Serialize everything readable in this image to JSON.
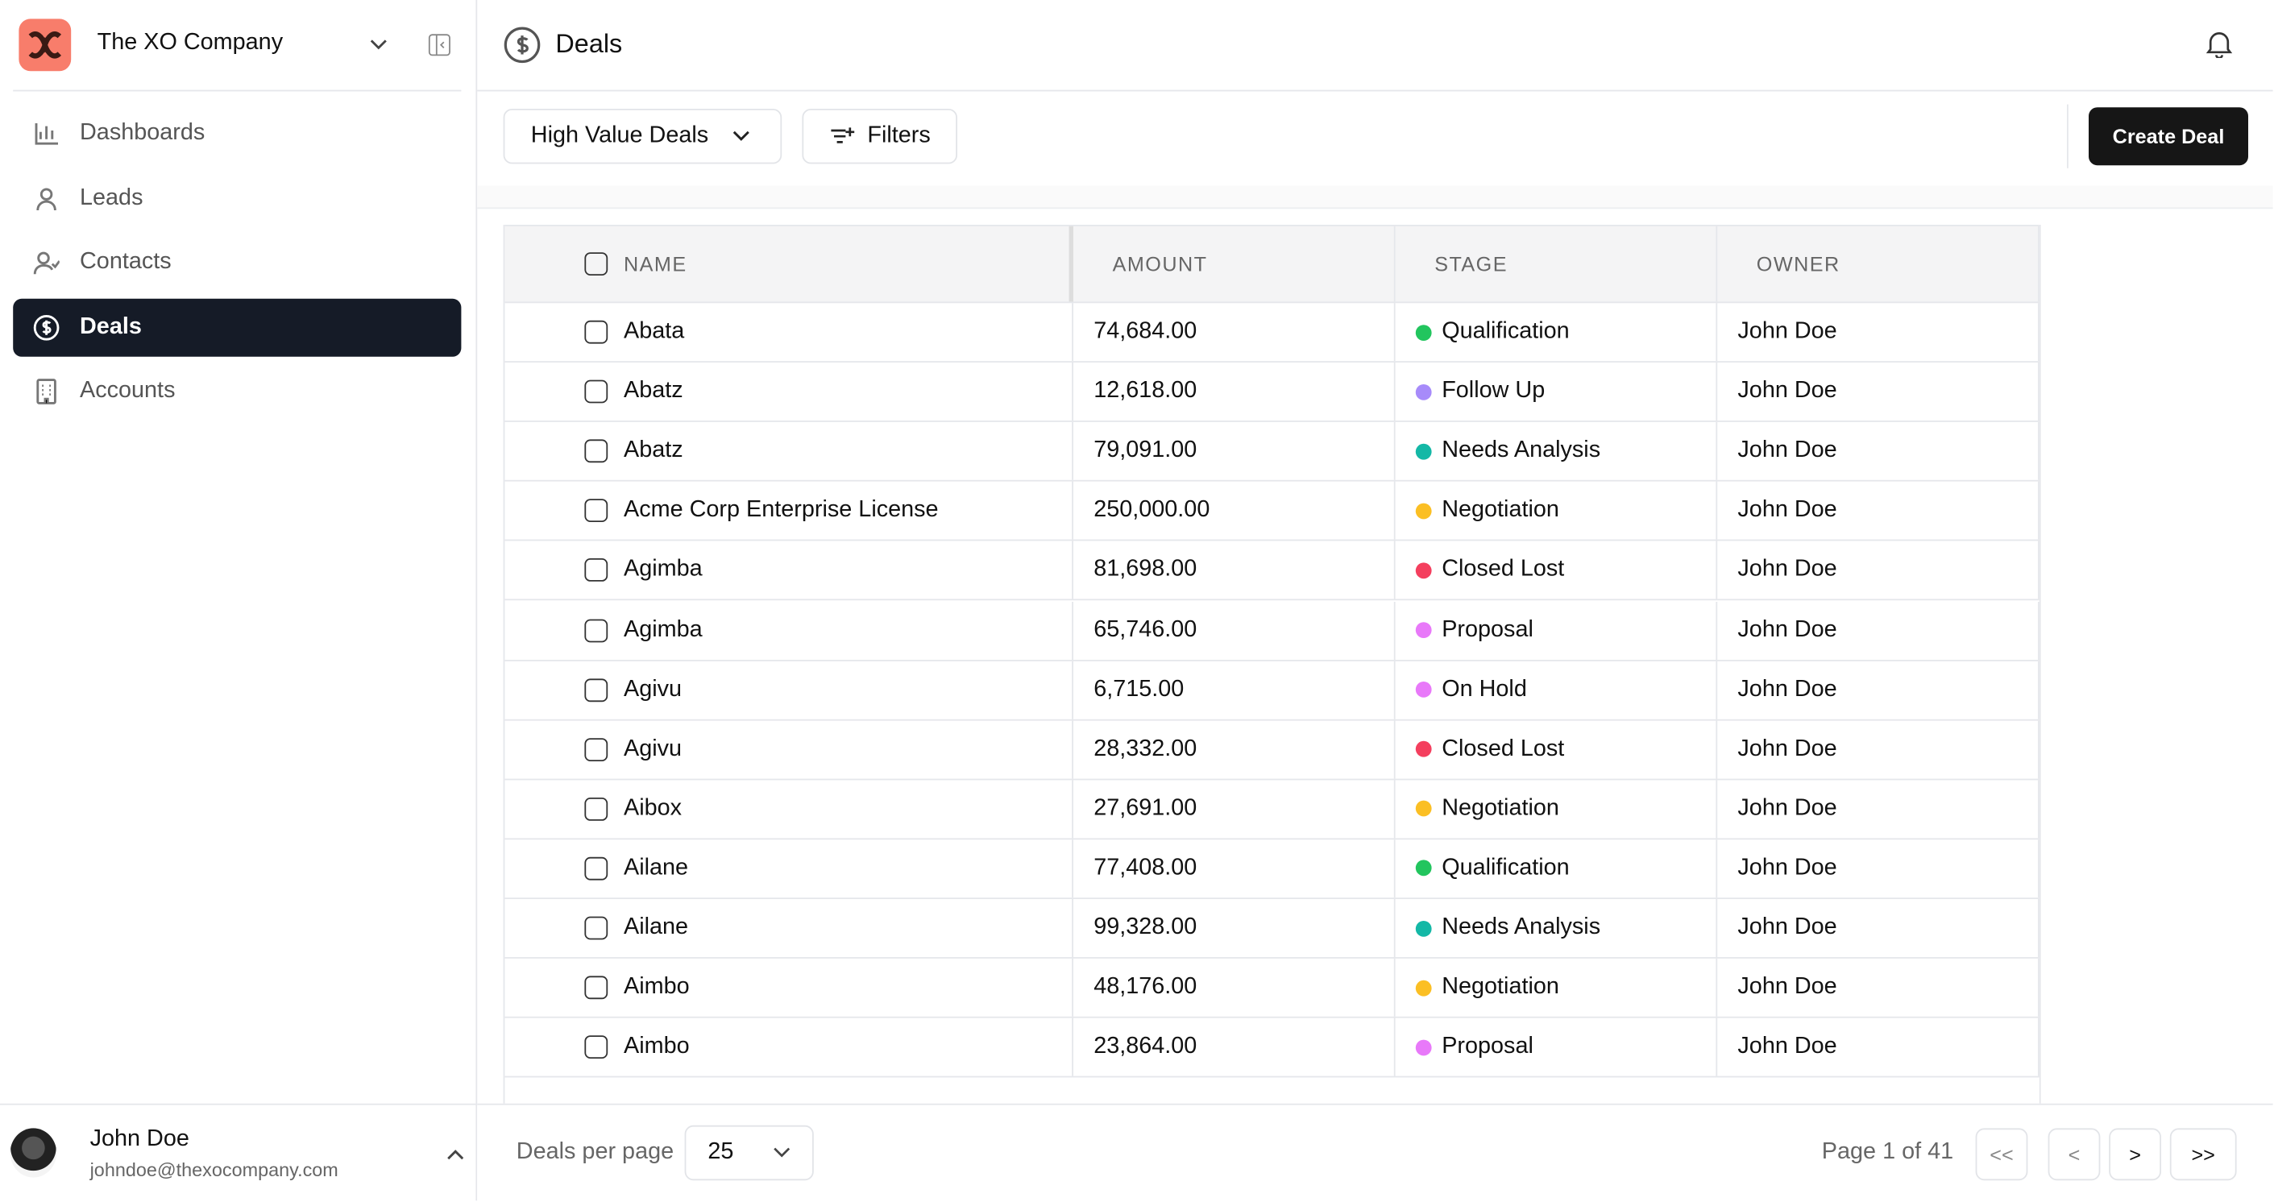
{
  "sidebar": {
    "company": "The XO Company",
    "nav": [
      "Dashboards",
      "Leads",
      "Contacts",
      "Deals",
      "Accounts"
    ],
    "active": "Deals",
    "user": {
      "name": "John Doe",
      "email": "johndoe@thexocompany.com"
    }
  },
  "header": {
    "title": "Deals",
    "view": "High Value Deals",
    "filters": "Filters",
    "create": "Create Deal"
  },
  "table": {
    "columns": [
      "NAME",
      "AMOUNT",
      "STAGE",
      "OWNER"
    ],
    "stage_colors": {
      "Qualification": "#22c55e",
      "Follow Up": "#a78bfa",
      "Needs Analysis": "#14b8a6",
      "Negotiation": "#fbbf24",
      "Closed Lost": "#f43f5e",
      "Proposal": "#e879f9",
      "On Hold": "#e879f9"
    },
    "rows": [
      [
        "Abata",
        "74,684.00",
        "Qualification",
        "John Doe"
      ],
      [
        "Abatz",
        "12,618.00",
        "Follow Up",
        "John Doe"
      ],
      [
        "Abatz",
        "79,091.00",
        "Needs Analysis",
        "John Doe"
      ],
      [
        "Acme Corp Enterprise License",
        "250,000.00",
        "Negotiation",
        "John Doe"
      ],
      [
        "Agimba",
        "81,698.00",
        "Closed Lost",
        "John Doe"
      ],
      [
        "Agimba",
        "65,746.00",
        "Proposal",
        "John Doe"
      ],
      [
        "Agivu",
        "6,715.00",
        "On Hold",
        "John Doe"
      ],
      [
        "Agivu",
        "28,332.00",
        "Closed Lost",
        "John Doe"
      ],
      [
        "Aibox",
        "27,691.00",
        "Negotiation",
        "John Doe"
      ],
      [
        "Ailane",
        "77,408.00",
        "Qualification",
        "John Doe"
      ],
      [
        "Ailane",
        "99,328.00",
        "Needs Analysis",
        "John Doe"
      ],
      [
        "Aimbo",
        "48,176.00",
        "Negotiation",
        "John Doe"
      ],
      [
        "Aimbo",
        "23,864.00",
        "Proposal",
        "John Doe"
      ]
    ]
  },
  "footer": {
    "per_page_label": "Deals per page",
    "per_page": "25",
    "page_info": "Page 1 of 41",
    "buttons": [
      "<<",
      "<",
      ">",
      ">>"
    ]
  }
}
